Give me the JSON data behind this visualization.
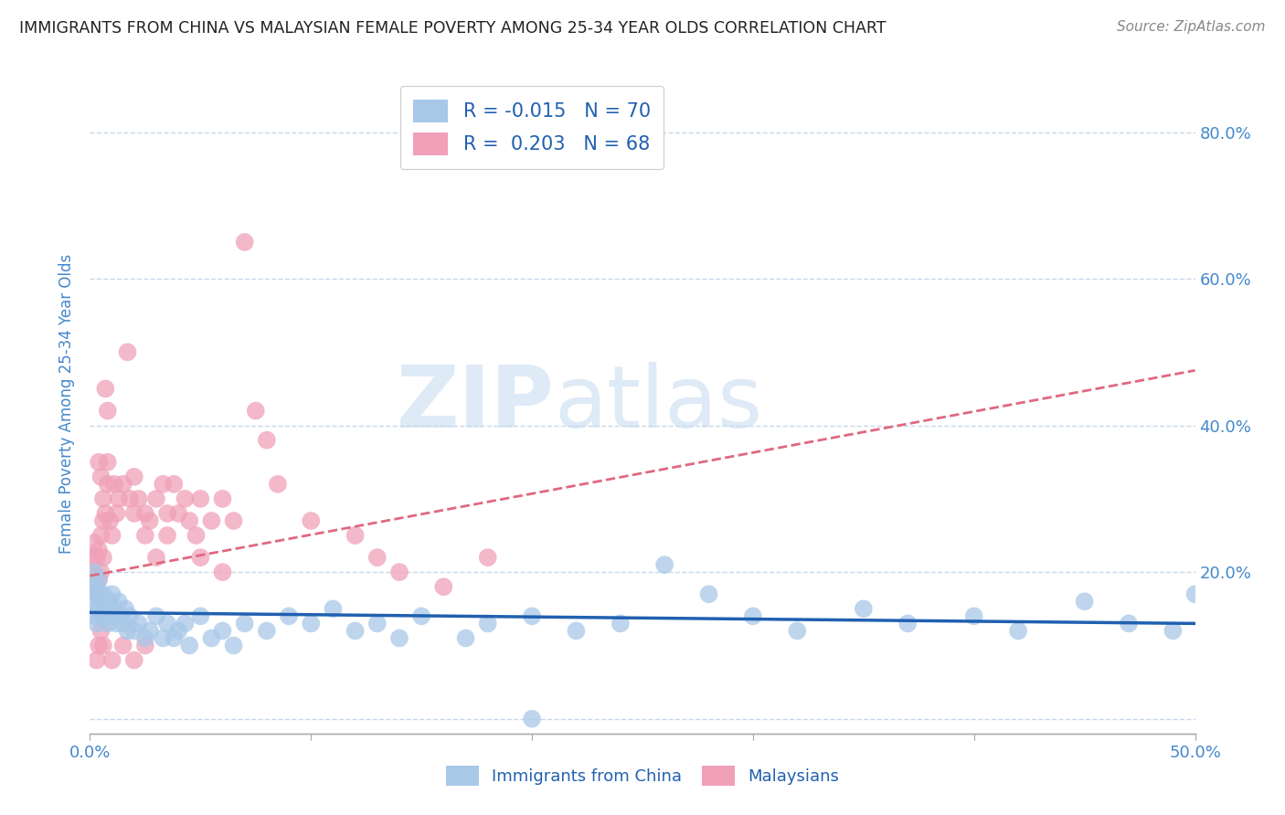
{
  "title": "IMMIGRANTS FROM CHINA VS MALAYSIAN FEMALE POVERTY AMONG 25-34 YEAR OLDS CORRELATION CHART",
  "source": "Source: ZipAtlas.com",
  "ylabel": "Female Poverty Among 25-34 Year Olds",
  "xlim": [
    0.0,
    0.5
  ],
  "ylim": [
    -0.02,
    0.88
  ],
  "xtick_positions": [
    0.0,
    0.5
  ],
  "xtick_labels": [
    "0.0%",
    "50.0%"
  ],
  "ytick_positions": [
    0.0,
    0.2,
    0.4,
    0.6,
    0.8
  ],
  "ytick_labels_right": [
    "",
    "20.0%",
    "40.0%",
    "60.0%",
    "80.0%"
  ],
  "blue_color": "#A8C8E8",
  "pink_color": "#F0A0B8",
  "blue_line_color": "#2060B0",
  "pink_line_color": "#E06880",
  "axis_label_color": "#4488CC",
  "grid_color": "#C8D8E8",
  "title_color": "#222222",
  "legend_r1": "R = -0.015",
  "legend_n1": "N = 70",
  "legend_r2": "R =  0.203",
  "legend_n2": "N = 68",
  "legend_label1": "Immigrants from China",
  "legend_label2": "Malaysians",
  "blue_R": -0.015,
  "blue_N": 70,
  "pink_R": 0.203,
  "pink_N": 68,
  "blue_trend_y0": 0.145,
  "blue_trend_y1": 0.13,
  "pink_trend_y0": 0.195,
  "pink_trend_y1": 0.475,
  "blue_scatter_x": [
    0.001,
    0.001,
    0.002,
    0.002,
    0.003,
    0.003,
    0.003,
    0.004,
    0.004,
    0.005,
    0.005,
    0.006,
    0.006,
    0.007,
    0.007,
    0.008,
    0.008,
    0.009,
    0.01,
    0.01,
    0.011,
    0.012,
    0.013,
    0.014,
    0.015,
    0.016,
    0.017,
    0.018,
    0.02,
    0.022,
    0.025,
    0.027,
    0.03,
    0.033,
    0.035,
    0.038,
    0.04,
    0.043,
    0.045,
    0.05,
    0.055,
    0.06,
    0.065,
    0.07,
    0.08,
    0.09,
    0.1,
    0.11,
    0.12,
    0.13,
    0.14,
    0.15,
    0.17,
    0.18,
    0.2,
    0.22,
    0.24,
    0.26,
    0.28,
    0.3,
    0.32,
    0.35,
    0.37,
    0.4,
    0.42,
    0.45,
    0.47,
    0.49,
    0.2,
    0.5
  ],
  "blue_scatter_y": [
    0.16,
    0.18,
    0.14,
    0.2,
    0.15,
    0.18,
    0.13,
    0.17,
    0.19,
    0.16,
    0.14,
    0.17,
    0.15,
    0.14,
    0.16,
    0.15,
    0.13,
    0.16,
    0.17,
    0.14,
    0.15,
    0.13,
    0.16,
    0.14,
    0.13,
    0.15,
    0.12,
    0.14,
    0.12,
    0.13,
    0.11,
    0.12,
    0.14,
    0.11,
    0.13,
    0.11,
    0.12,
    0.13,
    0.1,
    0.14,
    0.11,
    0.12,
    0.1,
    0.13,
    0.12,
    0.14,
    0.13,
    0.15,
    0.12,
    0.13,
    0.11,
    0.14,
    0.11,
    0.13,
    0.14,
    0.12,
    0.13,
    0.21,
    0.17,
    0.14,
    0.12,
    0.15,
    0.13,
    0.14,
    0.12,
    0.16,
    0.13,
    0.12,
    0.0,
    0.17
  ],
  "pink_scatter_x": [
    0.001,
    0.001,
    0.002,
    0.002,
    0.003,
    0.003,
    0.004,
    0.004,
    0.005,
    0.005,
    0.006,
    0.006,
    0.007,
    0.007,
    0.008,
    0.008,
    0.009,
    0.01,
    0.011,
    0.012,
    0.013,
    0.015,
    0.017,
    0.018,
    0.02,
    0.022,
    0.025,
    0.027,
    0.03,
    0.033,
    0.035,
    0.038,
    0.04,
    0.043,
    0.045,
    0.048,
    0.05,
    0.055,
    0.06,
    0.065,
    0.07,
    0.075,
    0.08,
    0.085,
    0.1,
    0.12,
    0.13,
    0.14,
    0.16,
    0.18,
    0.004,
    0.005,
    0.006,
    0.008,
    0.02,
    0.025,
    0.03,
    0.035,
    0.05,
    0.06,
    0.003,
    0.004,
    0.005,
    0.006,
    0.01,
    0.015,
    0.02,
    0.025
  ],
  "pink_scatter_y": [
    0.2,
    0.22,
    0.18,
    0.24,
    0.17,
    0.22,
    0.19,
    0.23,
    0.2,
    0.25,
    0.22,
    0.3,
    0.28,
    0.45,
    0.42,
    0.35,
    0.27,
    0.25,
    0.32,
    0.28,
    0.3,
    0.32,
    0.5,
    0.3,
    0.33,
    0.3,
    0.28,
    0.27,
    0.3,
    0.32,
    0.28,
    0.32,
    0.28,
    0.3,
    0.27,
    0.25,
    0.3,
    0.27,
    0.3,
    0.27,
    0.65,
    0.42,
    0.38,
    0.32,
    0.27,
    0.25,
    0.22,
    0.2,
    0.18,
    0.22,
    0.35,
    0.33,
    0.27,
    0.32,
    0.28,
    0.25,
    0.22,
    0.25,
    0.22,
    0.2,
    0.08,
    0.1,
    0.12,
    0.1,
    0.08,
    0.1,
    0.08,
    0.1
  ],
  "watermark_zip": "ZIP",
  "watermark_atlas": "atlas",
  "background_color": "#FFFFFF"
}
